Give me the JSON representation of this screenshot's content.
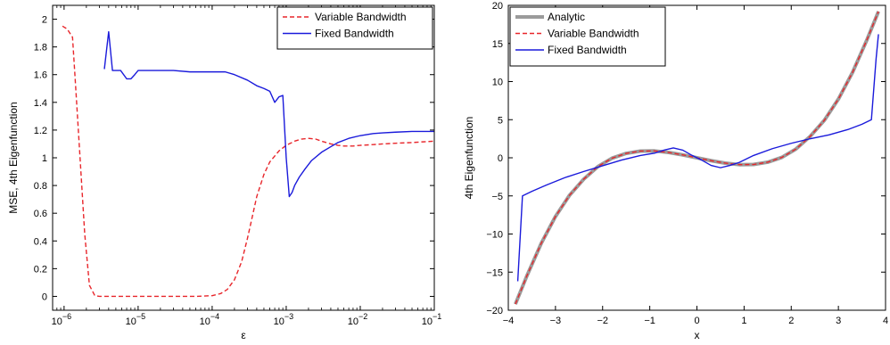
{
  "chart_data": [
    {
      "type": "line",
      "xscale": "log",
      "xlim": [
        7e-07,
        0.1
      ],
      "ylim": [
        -0.1,
        2.1
      ],
      "xlabel": "ε",
      "ylabel": "MSE, 4th Eigenfunction",
      "xticks": [
        1e-06,
        1e-05,
        0.0001,
        0.001,
        0.01,
        0.1
      ],
      "xtick_labels": [
        {
          "base": "10",
          "exp": "−6"
        },
        {
          "base": "10",
          "exp": "−5"
        },
        {
          "base": "10",
          "exp": "−4"
        },
        {
          "base": "10",
          "exp": "−3"
        },
        {
          "base": "10",
          "exp": "−2"
        },
        {
          "base": "10",
          "exp": "−1"
        }
      ],
      "yticks": [
        0,
        0.2,
        0.4,
        0.6,
        0.8,
        1,
        1.2,
        1.4,
        1.6,
        1.8,
        2
      ],
      "ytick_labels": [
        "0",
        "0.2",
        "0.4",
        "0.6",
        "0.8",
        "1",
        "1.2",
        "1.4",
        "1.6",
        "1.8",
        "2"
      ],
      "legend": "top-right",
      "series": [
        {
          "name": "Variable Bandwidth",
          "color": "#e8262b",
          "style": "dashed",
          "x": [
            9.5e-07,
            1.1e-06,
            1.3e-06,
            1.4e-06,
            1.6e-06,
            1.9e-06,
            2.2e-06,
            2.6e-06,
            3e-06,
            5e-06,
            1e-05,
            3e-05,
            6e-05,
            0.0001,
            0.00013,
            0.00016,
            0.0002,
            0.00025,
            0.0003,
            0.00035,
            0.0004,
            0.0005,
            0.0006,
            0.0008,
            0.001,
            0.0013,
            0.0016,
            0.002,
            0.0025,
            0.003,
            0.004,
            0.005,
            0.006,
            0.008,
            0.01,
            0.015,
            0.02,
            0.03,
            0.05,
            0.07,
            0.1
          ],
          "y": [
            1.95,
            1.93,
            1.87,
            1.6,
            1.1,
            0.45,
            0.08,
            0.005,
            0.0,
            0.0,
            0.0,
            0.0,
            0.0,
            0.005,
            0.02,
            0.05,
            0.12,
            0.25,
            0.42,
            0.58,
            0.72,
            0.88,
            0.97,
            1.05,
            1.09,
            1.12,
            1.135,
            1.14,
            1.135,
            1.12,
            1.1,
            1.09,
            1.085,
            1.085,
            1.09,
            1.095,
            1.1,
            1.105,
            1.11,
            1.115,
            1.12
          ]
        },
        {
          "name": "Fixed Bandwidth",
          "color": "#1a1adb",
          "style": "solid",
          "x": [
            3.5e-06,
            4e-06,
            4.5e-06,
            5e-06,
            5.8e-06,
            7e-06,
            8e-06,
            9e-06,
            1e-05,
            1.2e-05,
            1.4e-05,
            2e-05,
            3e-05,
            5e-05,
            8e-05,
            0.0001,
            0.00015,
            0.0002,
            0.0003,
            0.0004,
            0.0005,
            0.0006,
            0.0007,
            0.0008,
            0.0009,
            0.001,
            0.0011,
            0.0012,
            0.0013,
            0.0015,
            0.0018,
            0.0022,
            0.003,
            0.004,
            0.005,
            0.007,
            0.01,
            0.015,
            0.02,
            0.03,
            0.05,
            0.07,
            0.1
          ],
          "y": [
            1.64,
            1.91,
            1.63,
            1.63,
            1.63,
            1.57,
            1.57,
            1.6,
            1.63,
            1.63,
            1.63,
            1.63,
            1.63,
            1.62,
            1.62,
            1.62,
            1.62,
            1.6,
            1.56,
            1.52,
            1.5,
            1.48,
            1.4,
            1.44,
            1.45,
            1.0,
            0.72,
            0.75,
            0.8,
            0.86,
            0.92,
            0.98,
            1.04,
            1.08,
            1.11,
            1.14,
            1.16,
            1.175,
            1.18,
            1.185,
            1.19,
            1.19,
            1.19
          ]
        }
      ]
    },
    {
      "type": "line",
      "xscale": "linear",
      "xlim": [
        -4,
        4
      ],
      "ylim": [
        -20,
        20
      ],
      "xlabel": "x",
      "ylabel": "4th Eigenfunction",
      "xticks": [
        -4,
        -3,
        -2,
        -1,
        0,
        1,
        2,
        3,
        4
      ],
      "xtick_labels": [
        "−4",
        "−3",
        "−2",
        "−1",
        "0",
        "1",
        "2",
        "3",
        "4"
      ],
      "yticks": [
        -20,
        -15,
        -10,
        -5,
        0,
        5,
        10,
        15,
        20
      ],
      "ytick_labels": [
        "−20",
        "−15",
        "−10",
        "−5",
        "0",
        "5",
        "10",
        "15",
        "20"
      ],
      "legend": "top-left",
      "series": [
        {
          "name": "Analytic",
          "color": "#9b9b9b",
          "style": "solid-thick",
          "x": [
            -3.85,
            -3.6,
            -3.3,
            -3.0,
            -2.7,
            -2.4,
            -2.1,
            -1.8,
            -1.5,
            -1.2,
            -0.9,
            -0.6,
            -0.3,
            0.0,
            0.3,
            0.6,
            0.9,
            1.2,
            1.5,
            1.8,
            2.1,
            2.4,
            2.7,
            3.0,
            3.3,
            3.6,
            3.85
          ],
          "y": [
            -19.2,
            -15.4,
            -11.2,
            -7.7,
            -4.9,
            -2.8,
            -1.15,
            -0.05,
            0.58,
            0.88,
            0.9,
            0.7,
            0.38,
            0.0,
            -0.38,
            -0.7,
            -0.9,
            -0.88,
            -0.58,
            0.05,
            1.15,
            2.8,
            4.9,
            7.7,
            11.2,
            15.4,
            19.2
          ]
        },
        {
          "name": "Variable Bandwidth",
          "color": "#e8262b",
          "style": "dashed",
          "x": [
            -3.85,
            -3.6,
            -3.3,
            -3.0,
            -2.7,
            -2.4,
            -2.1,
            -1.8,
            -1.5,
            -1.2,
            -0.9,
            -0.6,
            -0.3,
            0.0,
            0.3,
            0.6,
            0.9,
            1.2,
            1.5,
            1.8,
            2.1,
            2.4,
            2.7,
            3.0,
            3.3,
            3.6,
            3.85
          ],
          "y": [
            -19.2,
            -15.4,
            -11.2,
            -7.7,
            -4.9,
            -2.8,
            -1.15,
            -0.05,
            0.58,
            0.88,
            0.9,
            0.7,
            0.38,
            0.0,
            -0.38,
            -0.7,
            -0.9,
            -0.88,
            -0.58,
            0.05,
            1.15,
            2.8,
            4.9,
            7.7,
            11.2,
            15.4,
            19.2
          ]
        },
        {
          "name": "Fixed Bandwidth",
          "color": "#1a1adb",
          "style": "solid",
          "x": [
            -3.8,
            -3.7,
            -3.5,
            -3.2,
            -2.8,
            -2.4,
            -2.0,
            -1.6,
            -1.2,
            -0.9,
            -0.7,
            -0.5,
            -0.3,
            -0.1,
            0.1,
            0.3,
            0.5,
            0.7,
            0.9,
            1.2,
            1.6,
            2.0,
            2.4,
            2.8,
            3.2,
            3.5,
            3.7,
            3.8,
            3.85
          ],
          "y": [
            -16.2,
            -5.0,
            -4.4,
            -3.6,
            -2.6,
            -1.8,
            -1.05,
            -0.3,
            0.3,
            0.6,
            1.0,
            1.3,
            1.0,
            0.3,
            -0.3,
            -1.0,
            -1.3,
            -1.0,
            -0.6,
            0.3,
            1.2,
            1.9,
            2.5,
            3.0,
            3.7,
            4.4,
            5.0,
            13.0,
            16.2
          ]
        }
      ]
    }
  ]
}
